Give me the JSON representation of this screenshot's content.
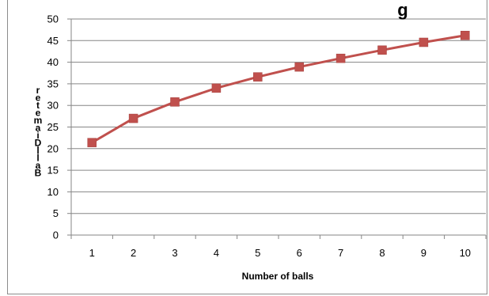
{
  "chart_data": {
    "type": "line",
    "title": "g",
    "xlabel": "Number of balls",
    "ylabel": "Ball Diameter",
    "categories": [
      "1",
      "2",
      "3",
      "4",
      "5",
      "6",
      "7",
      "8",
      "9",
      "10"
    ],
    "series": [
      {
        "values": [
          21.4,
          27.0,
          30.8,
          34.0,
          36.6,
          38.9,
          40.9,
          42.8,
          44.6,
          46.2
        ],
        "color": "#c0504d",
        "marker": "square"
      }
    ],
    "ylim": [
      0,
      50
    ],
    "yticks": [
      0,
      5,
      10,
      15,
      20,
      25,
      30,
      35,
      40,
      45,
      50
    ],
    "grid": true,
    "legend": "none"
  }
}
